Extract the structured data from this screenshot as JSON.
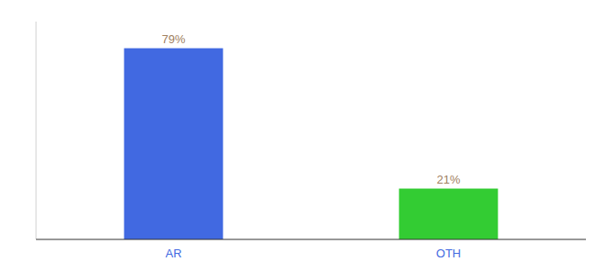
{
  "chart_data": {
    "type": "bar",
    "categories": [
      "AR",
      "OTH"
    ],
    "values": [
      79,
      21
    ],
    "value_labels": [
      "79%",
      "21%"
    ],
    "colors": [
      "#4169e1",
      "#33cc33"
    ],
    "ylim": [
      0,
      90
    ],
    "data_labels": true,
    "tick_labels": "x",
    "grid": false
  }
}
